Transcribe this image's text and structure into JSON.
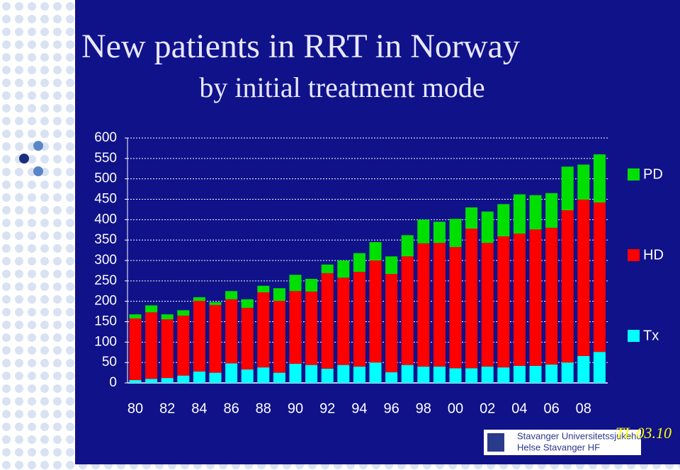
{
  "chart_data": {
    "type": "stacked-bar",
    "title": "New patients in RRT in Norway",
    "subtitle": "by initial treatment mode",
    "categories": [
      "80",
      null,
      "82",
      null,
      "84",
      null,
      "86",
      null,
      "88",
      null,
      "90",
      null,
      "92",
      null,
      "94",
      null,
      "96",
      null,
      "98",
      null,
      "00",
      null,
      "02",
      null,
      "04",
      null,
      "06",
      null,
      "08",
      null
    ],
    "series": [
      {
        "name": "PD",
        "color": "#00e000",
        "values": [
          10,
          17,
          12,
          13,
          9,
          7,
          20,
          21,
          16,
          31,
          40,
          31,
          21,
          42,
          46,
          45,
          43,
          52,
          58,
          52,
          69,
          52,
          77,
          79,
          96,
          84,
          85,
          107,
          86,
          118
        ]
      },
      {
        "name": "HD",
        "color": "#ff0000",
        "values": [
          151,
          163,
          144,
          147,
          173,
          166,
          157,
          151,
          184,
          176,
          178,
          180,
          234,
          214,
          232,
          250,
          241,
          266,
          302,
          303,
          297,
          342,
          303,
          321,
          324,
          334,
          335,
          373,
          383,
          366
        ]
      },
      {
        "name": "Tx",
        "color": "#00ffff",
        "values": [
          7,
          10,
          12,
          18,
          28,
          25,
          48,
          33,
          38,
          25,
          47,
          44,
          35,
          44,
          40,
          50,
          26,
          44,
          40,
          40,
          36,
          36,
          40,
          38,
          42,
          42,
          45,
          50,
          66,
          76
        ]
      }
    ],
    "ylim": [
      0,
      600
    ],
    "yticks": [
      0,
      50,
      100,
      150,
      200,
      250,
      300,
      350,
      400,
      450,
      500,
      550,
      600
    ],
    "grid": true,
    "legend": "right",
    "note": "TL 03.10",
    "logo_lines": [
      "Stavanger Universitetssjukehus",
      "Helse Stavanger HF"
    ]
  }
}
